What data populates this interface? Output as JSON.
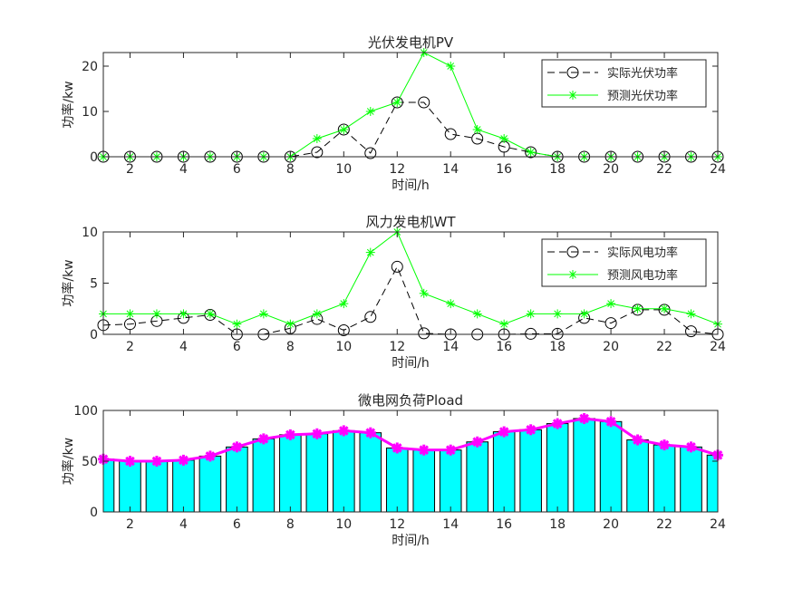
{
  "chart_data": [
    {
      "type": "line",
      "title": "光伏发电机PV",
      "xlabel": "时间/h",
      "ylabel": "功率/kw",
      "xlim": [
        1,
        24
      ],
      "ylim": [
        0,
        23
      ],
      "xticks": [
        2,
        4,
        6,
        8,
        10,
        12,
        14,
        16,
        18,
        20,
        22,
        24
      ],
      "yticks": [
        0,
        10,
        20
      ],
      "x": [
        1,
        2,
        3,
        4,
        5,
        6,
        7,
        8,
        9,
        10,
        11,
        12,
        13,
        14,
        15,
        16,
        17,
        18,
        19,
        20,
        21,
        22,
        23,
        24
      ],
      "legend": "top-right",
      "series": [
        {
          "name": "实际光伏功率",
          "color": "#000000",
          "style": "dashed",
          "marker": "circle",
          "values": [
            0,
            0,
            0,
            0,
            0,
            0,
            0,
            0,
            1,
            6,
            0.8,
            12,
            12,
            5,
            4,
            2.2,
            1,
            0,
            0,
            0,
            0,
            0,
            0,
            0
          ]
        },
        {
          "name": "预测光伏功率",
          "color": "#00ff00",
          "style": "solid",
          "marker": "star",
          "values": [
            0,
            0,
            0,
            0,
            0,
            0,
            0,
            0,
            4,
            6,
            10,
            12,
            23,
            20,
            6,
            4,
            1,
            0,
            0,
            0,
            0,
            0,
            0,
            0
          ]
        }
      ]
    },
    {
      "type": "line",
      "title": "风力发电机WT",
      "xlabel": "时间/h",
      "ylabel": "功率/kw",
      "xlim": [
        1,
        24
      ],
      "ylim": [
        0,
        10
      ],
      "xticks": [
        2,
        4,
        6,
        8,
        10,
        12,
        14,
        16,
        18,
        20,
        22,
        24
      ],
      "yticks": [
        0,
        5,
        10
      ],
      "x": [
        1,
        2,
        3,
        4,
        5,
        6,
        7,
        8,
        9,
        10,
        11,
        12,
        13,
        14,
        15,
        16,
        17,
        18,
        19,
        20,
        21,
        22,
        23,
        24
      ],
      "legend": "top-right",
      "series": [
        {
          "name": "实际风电功率",
          "color": "#000000",
          "style": "dashed",
          "marker": "circle",
          "values": [
            0.9,
            1,
            1.3,
            1.6,
            1.9,
            0,
            0,
            0.6,
            1.5,
            0.4,
            1.7,
            6.6,
            0.1,
            0,
            0,
            0,
            0.05,
            0.05,
            1.6,
            1.1,
            2.4,
            2.4,
            0.3,
            0
          ]
        },
        {
          "name": "预测风电功率",
          "color": "#00ff00",
          "style": "solid",
          "marker": "star",
          "values": [
            2,
            2,
            2,
            2,
            2,
            1,
            2,
            1,
            2,
            3,
            8,
            10,
            4,
            3,
            2,
            1,
            2,
            2,
            2,
            3,
            2.5,
            2.5,
            2,
            1
          ]
        }
      ]
    },
    {
      "type": "bar",
      "title": "微电网负荷Pload",
      "xlabel": "时间/h",
      "ylabel": "功率/kw",
      "xlim": [
        1,
        24
      ],
      "ylim": [
        0,
        100
      ],
      "xticks": [
        2,
        4,
        6,
        8,
        10,
        12,
        14,
        16,
        18,
        20,
        22,
        24
      ],
      "yticks": [
        0,
        50,
        100
      ],
      "x": [
        1,
        2,
        3,
        4,
        5,
        6,
        7,
        8,
        9,
        10,
        11,
        12,
        13,
        14,
        15,
        16,
        17,
        18,
        19,
        20,
        21,
        22,
        23,
        24
      ],
      "bar_color": "#00ffff",
      "line_color": "#ff00ff",
      "values": [
        52,
        50,
        50,
        51,
        55,
        64,
        72,
        76,
        77,
        80,
        78,
        63,
        61,
        61,
        69,
        79,
        81,
        87,
        92,
        89,
        71,
        66,
        64,
        56
      ]
    }
  ]
}
